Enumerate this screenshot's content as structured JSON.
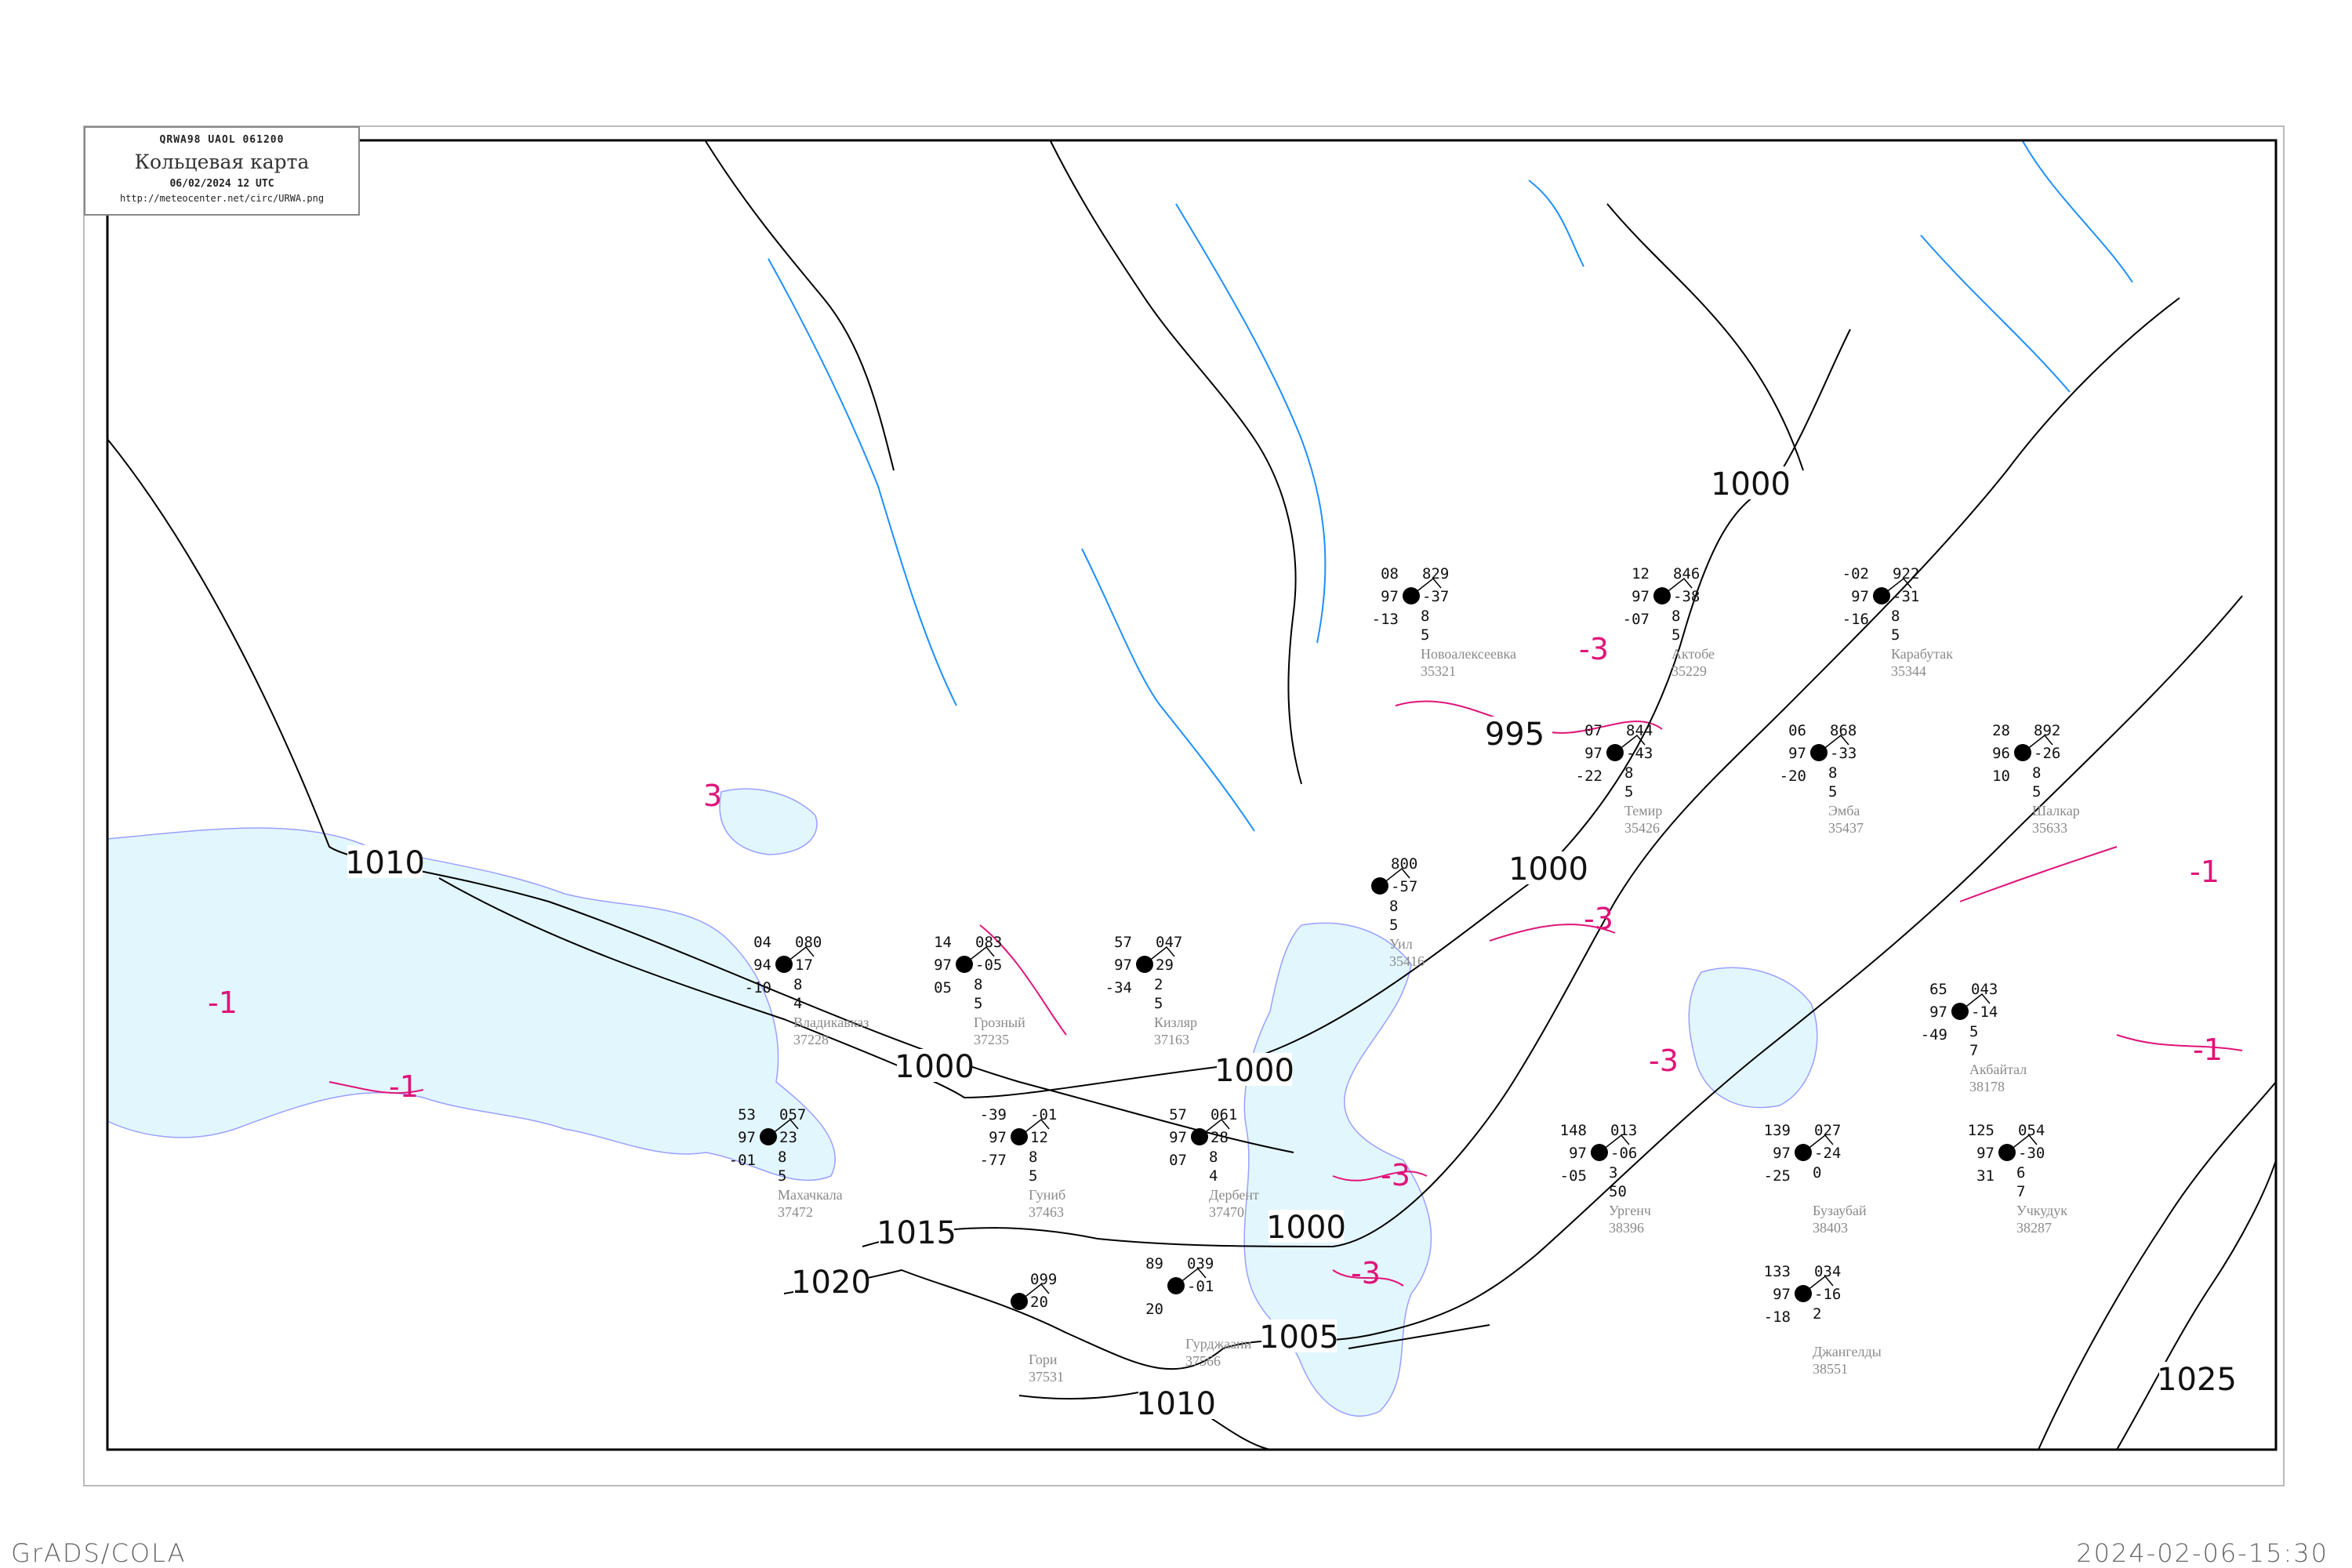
{
  "header": {
    "code_line": "QRWA98   UAOL   061200",
    "title": "Кольцевая карта",
    "datetime": "06/02/2024 12 UTC",
    "url": "http://meteocenter.net/circ/URWA.png"
  },
  "footer": {
    "software": "GrADS/COLA",
    "generated": "2024-02-06-15:30"
  },
  "colors": {
    "isobar": "#000000",
    "isotherm": "#e0147a",
    "water": "#e2f6fd",
    "river": "#1e90ff",
    "frame": "#000000",
    "precip_snow": "#3399ff",
    "precip_rain": "#22bb33",
    "fog_marker": "#f5c060"
  },
  "isobar_labels": [
    "1010",
    "1000",
    "995",
    "1000",
    "1000",
    "1000",
    "1015",
    "1020",
    "1000",
    "1005",
    "1025",
    "1010"
  ],
  "isotherm_labels": [
    "-3",
    "-3",
    "-3",
    "-3",
    "-3",
    "-1",
    "-1",
    "-1",
    "-1",
    "3"
  ],
  "stations": [
    {
      "name": "Новоалексеевка",
      "id": "35321",
      "temp": "08",
      "vis": "97",
      "dew": "-13",
      "pressure": "829",
      "tendency": "-37",
      "cloud": "8",
      "low": "5"
    },
    {
      "name": "Актобе",
      "id": "35229",
      "temp": "12",
      "vis": "97",
      "dew": "-07",
      "pressure": "846",
      "tendency": "-38",
      "cloud": "8",
      "low": "5"
    },
    {
      "name": "Карабутак",
      "id": "35344",
      "temp": "-02",
      "vis": "97",
      "dew": "-16",
      "pressure": "922",
      "tendency": "-31",
      "cloud": "8",
      "low": "5"
    },
    {
      "name": "Темир",
      "id": "35426",
      "temp": "07",
      "vis": "97",
      "dew": "-22",
      "pressure": "844",
      "tendency": "-43",
      "cloud": "8",
      "low": "5"
    },
    {
      "name": "Эмба",
      "id": "35437",
      "temp": "06",
      "vis": "97",
      "dew": "-20",
      "pressure": "868",
      "tendency": "-33",
      "cloud": "8",
      "low": "5"
    },
    {
      "name": "Шалкар",
      "id": "35633",
      "temp": "28",
      "vis": "96",
      "dew": "10",
      "pressure": "892",
      "tendency": "-26",
      "cloud": "8",
      "low": "5"
    },
    {
      "name": "Уил",
      "id": "35416",
      "temp": "",
      "vis": "",
      "dew": "",
      "pressure": "800",
      "tendency": "-57",
      "cloud": "8",
      "low": "5"
    },
    {
      "name": "Акбайтал",
      "id": "38178",
      "temp": "65",
      "vis": "97",
      "dew": "-49",
      "pressure": "043",
      "tendency": "-14",
      "cloud": "5",
      "low": "7"
    },
    {
      "name": "Учкудук",
      "id": "38287",
      "temp": "125",
      "vis": "97",
      "dew": "31",
      "pressure": "054",
      "tendency": "-30",
      "cloud": "6",
      "low": "7"
    },
    {
      "name": "Бузаубай",
      "id": "38403",
      "temp": "139",
      "vis": "97",
      "dew": "-25",
      "pressure": "027",
      "tendency": "-24",
      "cloud": "0",
      "low": ""
    },
    {
      "name": "Ургенч",
      "id": "38396",
      "temp": "148",
      "vis": "97",
      "dew": "-05",
      "pressure": "013",
      "tendency": "-06",
      "cloud": "3",
      "low": "50"
    },
    {
      "name": "Джангелды",
      "id": "38551",
      "temp": "133",
      "vis": "97",
      "dew": "-18",
      "pressure": "034",
      "tendency": "-16",
      "cloud": "2",
      "low": ""
    },
    {
      "name": "Владикавказ",
      "id": "37228",
      "temp": "04",
      "vis": "94",
      "dew": "-10",
      "pressure": "080",
      "tendency": "17",
      "cloud": "8",
      "low": "4"
    },
    {
      "name": "Грозный",
      "id": "37235",
      "temp": "14",
      "vis": "97",
      "dew": "05",
      "pressure": "083",
      "tendency": "-05",
      "cloud": "8",
      "low": "5"
    },
    {
      "name": "Кизляр",
      "id": "37163",
      "temp": "57",
      "vis": "97",
      "dew": "-34",
      "pressure": "047",
      "tendency": "29",
      "cloud": "2",
      "low": "5"
    },
    {
      "name": "Махачкала",
      "id": "37472",
      "temp": "53",
      "vis": "97",
      "dew": "-01",
      "pressure": "057",
      "tendency": "23",
      "cloud": "8",
      "low": "5"
    },
    {
      "name": "Гуниб",
      "id": "37463",
      "temp": "-39",
      "vis": "97",
      "dew": "-77",
      "pressure": "-01",
      "tendency": "12",
      "cloud": "8",
      "low": "5"
    },
    {
      "name": "Дербент",
      "id": "37470",
      "temp": "57",
      "vis": "97",
      "dew": "07",
      "pressure": "061",
      "tendency": "28",
      "cloud": "8",
      "low": "4"
    },
    {
      "name": "Гори",
      "id": "37531",
      "temp": "",
      "vis": "",
      "dew": "",
      "pressure": "099",
      "tendency": "20",
      "cloud": "",
      "low": ""
    },
    {
      "name": "Гурджаани",
      "id": "37566",
      "temp": "89",
      "vis": "",
      "dew": "20",
      "pressure": "039",
      "tendency": "-01",
      "cloud": "",
      "low": ""
    }
  ]
}
